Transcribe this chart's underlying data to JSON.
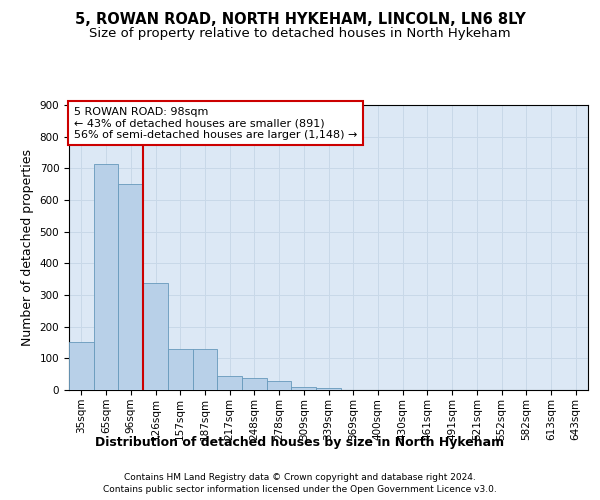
{
  "title_line1": "5, ROWAN ROAD, NORTH HYKEHAM, LINCOLN, LN6 8LY",
  "title_line2": "Size of property relative to detached houses in North Hykeham",
  "xlabel": "Distribution of detached houses by size in North Hykeham",
  "ylabel": "Number of detached properties",
  "categories": [
    "35sqm",
    "65sqm",
    "96sqm",
    "126sqm",
    "157sqm",
    "187sqm",
    "217sqm",
    "248sqm",
    "278sqm",
    "309sqm",
    "339sqm",
    "369sqm",
    "400sqm",
    "430sqm",
    "461sqm",
    "491sqm",
    "521sqm",
    "552sqm",
    "582sqm",
    "613sqm",
    "643sqm"
  ],
  "values": [
    152,
    715,
    652,
    337,
    130,
    130,
    43,
    37,
    30,
    11,
    5,
    0,
    0,
    0,
    0,
    0,
    0,
    0,
    0,
    0,
    0
  ],
  "bar_color": "#b8d0e8",
  "bar_edge_color": "#6699bb",
  "vline_x": 2.5,
  "vline_color": "#cc0000",
  "annotation_text": "5 ROWAN ROAD: 98sqm\n← 43% of detached houses are smaller (891)\n56% of semi-detached houses are larger (1,148) →",
  "annotation_box_facecolor": "#ffffff",
  "annotation_box_edgecolor": "#cc0000",
  "ylim": [
    0,
    900
  ],
  "yticks": [
    0,
    100,
    200,
    300,
    400,
    500,
    600,
    700,
    800,
    900
  ],
  "grid_color": "#c8d8e8",
  "plot_bg_color": "#dce8f5",
  "fig_bg_color": "#ffffff",
  "footer_line1": "Contains HM Land Registry data © Crown copyright and database right 2024.",
  "footer_line2": "Contains public sector information licensed under the Open Government Licence v3.0.",
  "title_fontsize": 10.5,
  "subtitle_fontsize": 9.5,
  "ylabel_fontsize": 9,
  "xlabel_fontsize": 9,
  "tick_fontsize": 7.5,
  "annotation_fontsize": 8,
  "footer_fontsize": 6.5
}
